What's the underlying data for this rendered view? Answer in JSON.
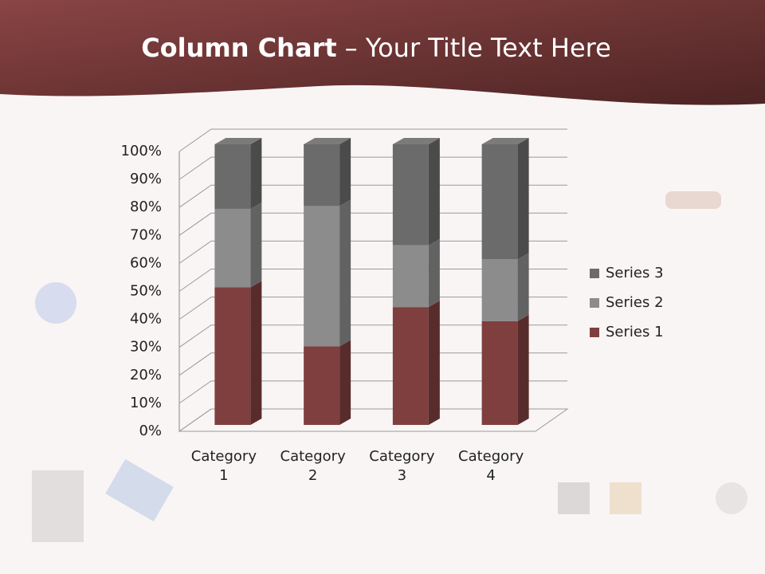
{
  "chart_data": {
    "type": "stacked_bar_3d",
    "title_bold": "Column Chart",
    "title_rest": "– Your Title Text Here",
    "categories": [
      "Category 1",
      "Category 2",
      "Category 3",
      "Category 4"
    ],
    "series": [
      {
        "name": "Series 1",
        "color": "#7f3f3f",
        "values": [
          49,
          28,
          42,
          37
        ]
      },
      {
        "name": "Series 2",
        "color": "#8c8c8c",
        "values": [
          28,
          50,
          22,
          22
        ]
      },
      {
        "name": "Series 3",
        "color": "#6b6b6b",
        "values": [
          23,
          22,
          36,
          41
        ]
      }
    ],
    "ylim": [
      0,
      100
    ],
    "yticks": [
      {
        "value": 0,
        "label": "0%"
      },
      {
        "value": 10,
        "label": "10%"
      },
      {
        "value": 20,
        "label": "20%"
      },
      {
        "value": 30,
        "label": "30%"
      },
      {
        "value": 40,
        "label": "40%"
      },
      {
        "value": 50,
        "label": "50%"
      },
      {
        "value": 60,
        "label": "60%"
      },
      {
        "value": 70,
        "label": "70%"
      },
      {
        "value": 80,
        "label": "80%"
      },
      {
        "value": 90,
        "label": "90%"
      },
      {
        "value": 100,
        "label": "100%"
      }
    ],
    "grid": true,
    "legend": "right"
  }
}
